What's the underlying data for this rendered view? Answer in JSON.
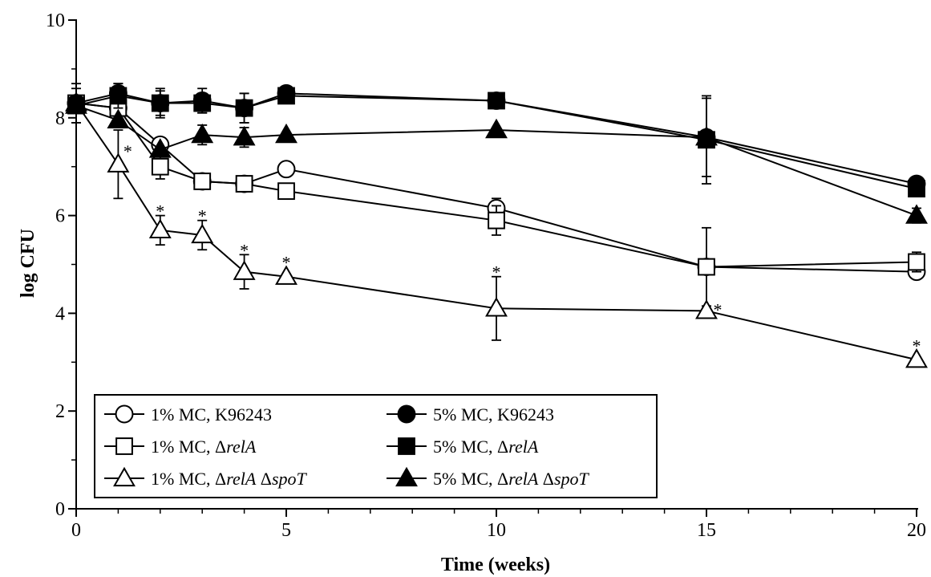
{
  "chart_data": {
    "type": "line",
    "title": "",
    "xlabel": "Time (weeks)",
    "ylabel": "log CFU",
    "xlim": [
      0,
      20
    ],
    "ylim": [
      0,
      10
    ],
    "x_ticks": [
      0,
      5,
      10,
      15,
      20
    ],
    "y_ticks": [
      0,
      2,
      4,
      6,
      8,
      10
    ],
    "x_tick_labels": [
      "0",
      "5",
      "10",
      "15",
      "20"
    ],
    "y_tick_labels": [
      "0",
      "2",
      "4",
      "6",
      "8",
      "10"
    ],
    "grid": false,
    "legend_position": "bottom-left",
    "series": [
      {
        "key": "c1",
        "name": "1% MC, K96243",
        "name_parts": [
          {
            "t": "1% MC, K96243",
            "i": false
          }
        ],
        "marker": "circle",
        "filled": false,
        "x": [
          0,
          1,
          2,
          3,
          4,
          5,
          10,
          15,
          20
        ],
        "y": [
          8.3,
          8.2,
          7.45,
          6.7,
          6.65,
          6.95,
          6.15,
          4.95,
          4.85
        ],
        "err": [
          0,
          0,
          0,
          0,
          0,
          0,
          0.2,
          0,
          0
        ]
      },
      {
        "key": "c2",
        "name": "1% MC, ΔrelA",
        "name_parts": [
          {
            "t": "1% MC,  Δ",
            "i": false
          },
          {
            "t": "relA",
            "i": true
          }
        ],
        "marker": "square",
        "filled": false,
        "x": [
          0,
          1,
          2,
          3,
          4,
          5,
          10,
          15,
          20
        ],
        "y": [
          8.3,
          8.2,
          7.0,
          6.7,
          6.65,
          6.5,
          5.9,
          4.95,
          5.05
        ],
        "err": [
          0,
          0,
          0.25,
          0.15,
          0,
          0,
          0.3,
          0.8,
          0.2
        ]
      },
      {
        "key": "c3",
        "name": "1% MC, ΔrelA ΔspoT",
        "name_parts": [
          {
            "t": "1% MC, Δ",
            "i": false
          },
          {
            "t": "relA",
            "i": true
          },
          {
            "t": " Δ",
            "i": false
          },
          {
            "t": "spoT",
            "i": true
          }
        ],
        "marker": "triangle",
        "filled": false,
        "x": [
          0,
          1,
          2,
          3,
          4,
          5,
          10,
          15,
          20
        ],
        "y": [
          8.3,
          7.05,
          5.7,
          5.6,
          4.85,
          4.75,
          4.1,
          4.05,
          3.05
        ],
        "err": [
          0,
          0.7,
          0.3,
          0.3,
          0.35,
          0,
          0.65,
          0,
          0
        ],
        "significance": [
          false,
          true,
          true,
          true,
          true,
          true,
          true,
          true,
          true
        ]
      },
      {
        "key": "c4",
        "name": "5% MC, K96243",
        "name_parts": [
          {
            "t": "5% MC, K96243",
            "i": false
          }
        ],
        "marker": "circle",
        "filled": true,
        "x": [
          0,
          1,
          2,
          3,
          4,
          5,
          10,
          15,
          20
        ],
        "y": [
          8.3,
          8.5,
          8.3,
          8.35,
          8.2,
          8.5,
          8.35,
          7.6,
          6.65
        ],
        "err": [
          0.4,
          0.2,
          0.25,
          0.25,
          0.3,
          0,
          0,
          0.8,
          0
        ]
      },
      {
        "key": "c5",
        "name": "5% MC, ΔrelA",
        "name_parts": [
          {
            "t": "5% MC, Δ",
            "i": false
          },
          {
            "t": "relA",
            "i": true
          }
        ],
        "marker": "square",
        "filled": true,
        "x": [
          0,
          1,
          2,
          3,
          4,
          5,
          10,
          15,
          20
        ],
        "y": [
          8.25,
          8.45,
          8.3,
          8.3,
          8.2,
          8.45,
          8.35,
          7.55,
          6.55
        ],
        "err": [
          0.35,
          0.25,
          0.3,
          0.2,
          0.3,
          0,
          0,
          0.9,
          0
        ]
      },
      {
        "key": "c6",
        "name": "5% MC, ΔrelA ΔspoT",
        "name_parts": [
          {
            "t": "5% MC, Δ",
            "i": false
          },
          {
            "t": "relA",
            "i": true
          },
          {
            "t": " Δ",
            "i": false
          },
          {
            "t": "spoT",
            "i": true
          }
        ],
        "marker": "triangle",
        "filled": true,
        "x": [
          0,
          1,
          2,
          3,
          4,
          5,
          10,
          15,
          20
        ],
        "y": [
          8.25,
          7.95,
          7.35,
          7.65,
          7.6,
          7.65,
          7.75,
          7.6,
          6.0
        ],
        "err": [
          0,
          0,
          0,
          0.2,
          0.2,
          0,
          0,
          0,
          0.15
        ]
      }
    ],
    "significance_marker": "*"
  }
}
